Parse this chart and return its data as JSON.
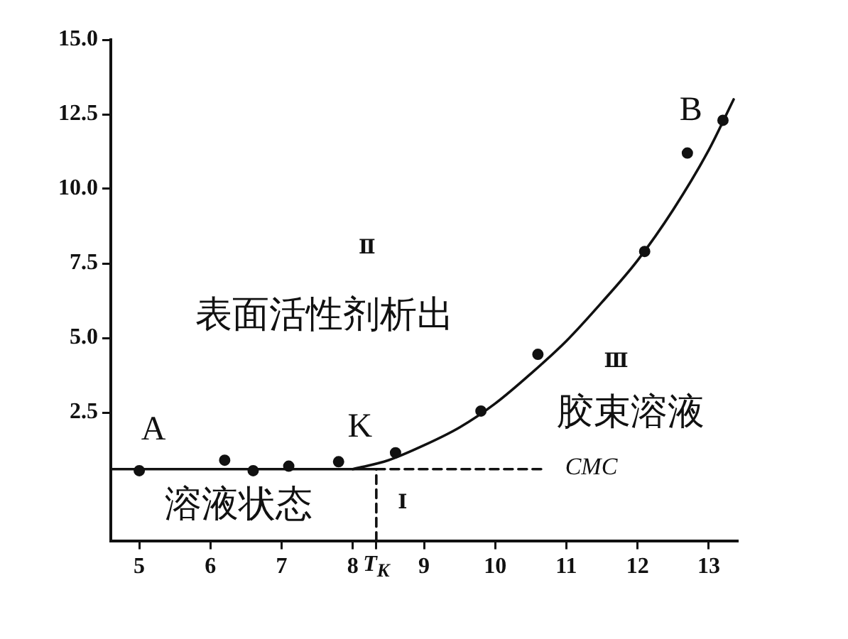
{
  "chart_data": {
    "type": "scatter",
    "xlim": [
      4.6,
      13.4
    ],
    "ylim": [
      -1.8,
      15.0
    ],
    "xticks": [
      5,
      6,
      7,
      8,
      {
        "value": 8.33,
        "label": "T$_{K}$"
      },
      9,
      10,
      11,
      12,
      13
    ],
    "yticks": [
      {
        "value": 2.5,
        "label": "2.5"
      },
      {
        "value": 5,
        "label": "5.0"
      },
      {
        "value": 7.5,
        "label": "7.5"
      },
      {
        "value": 10,
        "label": "10.0"
      },
      {
        "value": 12.5,
        "label": "12.5"
      },
      {
        "value": 15,
        "label": "15.0"
      }
    ],
    "grid": false,
    "legend": false,
    "series": [
      {
        "type": "scatter",
        "marker": "circle",
        "color": "#111111",
        "x": [
          5.0,
          6.2,
          6.6,
          7.1,
          7.8,
          8.6,
          9.8,
          10.6,
          12.1,
          12.7,
          13.2
        ],
        "values": [
          0.55,
          0.9,
          0.55,
          0.7,
          0.85,
          1.15,
          2.55,
          4.45,
          7.9,
          11.2,
          12.3
        ]
      },
      {
        "type": "line",
        "line_style": "solid",
        "color": "#111111",
        "x": [
          8.0,
          8.5,
          9.0,
          9.5,
          10.0,
          10.5,
          11.0,
          11.5,
          12.0,
          12.5,
          13.0,
          13.35
        ],
        "values": [
          0.6,
          0.9,
          1.4,
          2.0,
          2.8,
          3.8,
          4.9,
          6.2,
          7.6,
          9.3,
          11.3,
          13.0
        ]
      },
      {
        "type": "line",
        "line_style": "solid",
        "color": "#111111",
        "x": [
          4.6,
          8.33
        ],
        "values": [
          0.6,
          0.6
        ]
      },
      {
        "type": "line",
        "line_style": "dashed",
        "color": "#111111",
        "x": [
          8.33,
          8.33
        ],
        "values": [
          -1.8,
          0.6
        ]
      },
      {
        "type": "line",
        "line_style": "dashed",
        "color": "#111111",
        "x": [
          8.33,
          10.7
        ],
        "values": [
          0.6,
          0.6
        ]
      }
    ],
    "annotations": [
      "A",
      "K",
      "B",
      "Ⅱ",
      "表面活性剂析出",
      "Ⅲ",
      "胶束溶液",
      "溶液状态",
      "Ⅰ",
      "CMC"
    ]
  }
}
